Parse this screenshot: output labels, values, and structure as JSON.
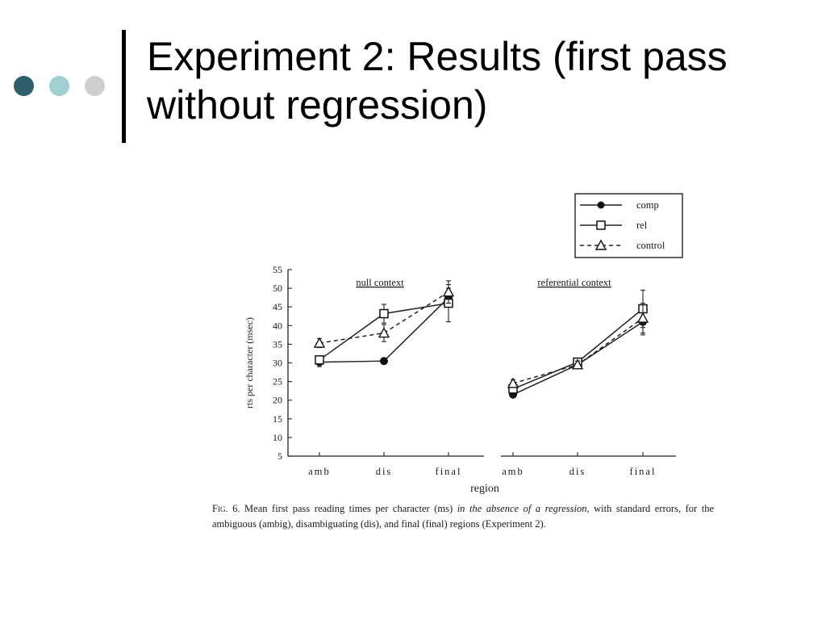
{
  "slide": {
    "title": "Experiment 2: Results (first pass without regression)",
    "bullet_colors": [
      "#2f5f6a",
      "#9fcfd3",
      "#cfcfcf"
    ]
  },
  "chart_data": {
    "type": "line",
    "ylabel": "rts per character (msec)",
    "xlabel": "region",
    "ylim": [
      5,
      55
    ],
    "yticks": [
      5,
      10,
      15,
      20,
      25,
      30,
      35,
      40,
      45,
      50,
      55
    ],
    "legend": {
      "placement": "top-right",
      "entries": [
        {
          "label": "comp",
          "marker": "filled-circle",
          "line": "solid"
        },
        {
          "label": "rel",
          "marker": "open-square",
          "line": "solid"
        },
        {
          "label": "control",
          "marker": "open-triangle",
          "line": "dashed"
        }
      ]
    },
    "panels": [
      {
        "title": "null context",
        "categories": [
          "amb",
          "dis",
          "final"
        ],
        "series": [
          {
            "name": "comp",
            "values": [
              30.2,
              30.5,
              47.5
            ],
            "errors": [
              1.2,
              0.5,
              2.5
            ]
          },
          {
            "name": "rel",
            "values": [
              30.8,
              43.2,
              46.0
            ],
            "errors": [
              1.0,
              2.5,
              5.0
            ]
          },
          {
            "name": "control",
            "values": [
              35.3,
              38.0,
              49.0
            ],
            "errors": [
              1.2,
              2.3,
              3.0
            ]
          }
        ]
      },
      {
        "title": "referential context",
        "categories": [
          "amb",
          "dis",
          "final"
        ],
        "series": [
          {
            "name": "comp",
            "values": [
              21.5,
              29.5,
              41.0
            ],
            "errors": [
              0.5,
              1.0,
              3.5
            ]
          },
          {
            "name": "rel",
            "values": [
              23.0,
              30.2,
              44.5
            ],
            "errors": [
              0.8,
              1.0,
              5.0
            ]
          },
          {
            "name": "control",
            "values": [
              24.5,
              29.5,
              42.0
            ],
            "errors": [
              1.0,
              1.0,
              4.0
            ]
          }
        ]
      }
    ]
  },
  "caption": {
    "label": "Fig. 6.",
    "text_part1": " Mean first pass reading times per character (ms) ",
    "text_emphasis": "in the absence of a regression",
    "text_part2": ", with standard errors, for the ambiguous (ambig), disambiguating (dis), and final (final) regions (Experiment 2)."
  }
}
